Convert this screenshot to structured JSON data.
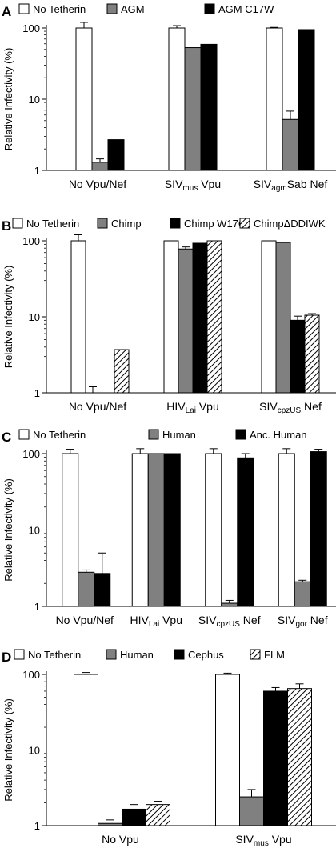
{
  "colors": {
    "no_tetherin": "#ffffff",
    "gray": "#808080",
    "black": "#000000",
    "hatch": "hatched"
  },
  "chart_data": [
    {
      "type": "bar",
      "panel_label": "A",
      "ylabel": "Relative Infectivity (%)",
      "yscale": "log",
      "ylim": [
        1,
        100
      ],
      "yticks": [
        "1",
        "10",
        "100"
      ],
      "legend_placement": "top",
      "categories": [
        {
          "main": "No Vpu/Nef",
          "sub": "",
          "tail": ""
        },
        {
          "main": "SIV",
          "sub": "mus",
          "tail": " Vpu"
        },
        {
          "main": "SIV",
          "sub": "agm",
          "tail": "Sab Nef"
        }
      ],
      "series": [
        {
          "name": "No Tetherin",
          "fill": "white",
          "values": [
            100,
            100,
            100
          ],
          "errors": [
            20,
            8,
            2
          ]
        },
        {
          "name": "AGM",
          "fill": "gray",
          "values": [
            1.3,
            53,
            5.2
          ],
          "errors": [
            0.15,
            0,
            1.6
          ]
        },
        {
          "name": "AGM C17W",
          "fill": "black",
          "values": [
            2.7,
            59,
            95
          ],
          "errors": [
            0,
            0,
            0
          ]
        }
      ]
    },
    {
      "type": "bar",
      "panel_label": "B",
      "ylabel": "Relative Infectivity (%)",
      "yscale": "log",
      "ylim": [
        1,
        100
      ],
      "yticks": [
        "1",
        "10",
        "100"
      ],
      "legend_placement": "top",
      "categories": [
        {
          "main": "No Vpu/Nef",
          "sub": "",
          "tail": ""
        },
        {
          "main": "HIV",
          "sub": "Lai",
          "tail": " Vpu"
        },
        {
          "main": "SIV",
          "sub": "cpzUS",
          "tail": " Nef"
        }
      ],
      "series": [
        {
          "name": "No Tetherin",
          "fill": "white",
          "values": [
            100,
            100,
            100
          ],
          "errors": [
            20,
            0,
            0
          ]
        },
        {
          "name": "Chimp",
          "fill": "gray",
          "values": [
            1.0,
            78,
            95
          ],
          "errors": [
            0.2,
            5,
            0
          ]
        },
        {
          "name": "Chimp W17C",
          "fill": "black",
          "values": [
            1.0,
            93,
            9
          ],
          "errors": [
            0,
            0,
            1.2
          ]
        },
        {
          "name": "ChimpΔDDIWK",
          "fill": "hatch",
          "values": [
            3.7,
            100,
            10.5
          ],
          "errors": [
            0,
            0,
            0.5
          ]
        }
      ]
    },
    {
      "type": "bar",
      "panel_label": "C",
      "ylabel": "Relative Infectivity (%)",
      "yscale": "log",
      "ylim": [
        1,
        100
      ],
      "yticks": [
        "1",
        "10",
        "100"
      ],
      "legend_placement": "top",
      "categories": [
        {
          "main": "No Vpu/Nef",
          "sub": "",
          "tail": ""
        },
        {
          "main": "HIV",
          "sub": "Lai",
          "tail": " Vpu"
        },
        {
          "main": "SIV",
          "sub": "cpzUS",
          "tail": " Nef"
        },
        {
          "main": "SIV",
          "sub": "gor",
          "tail": " Nef"
        }
      ],
      "series": [
        {
          "name": "No Tetherin",
          "fill": "white",
          "values": [
            100,
            100,
            100,
            100
          ],
          "errors": [
            14,
            16,
            16,
            16
          ]
        },
        {
          "name": "Human",
          "fill": "gray",
          "values": [
            2.8,
            100,
            1.1,
            2.1
          ],
          "errors": [
            0.2,
            0,
            0.1,
            0.1
          ]
        },
        {
          "name": "Anc. Human",
          "fill": "black",
          "values": [
            2.7,
            100,
            88,
            106
          ],
          "errors": [
            2.3,
            0,
            12,
            8
          ]
        }
      ]
    },
    {
      "type": "bar",
      "panel_label": "D",
      "ylabel": "Relative Infectivity (%)",
      "yscale": "log",
      "ylim": [
        1,
        100
      ],
      "yticks": [
        "1",
        "10",
        "100"
      ],
      "legend_placement": "top",
      "categories": [
        {
          "main": "No Vpu",
          "sub": "",
          "tail": ""
        },
        {
          "main": "SIV",
          "sub": "mus",
          "tail": " Vpu"
        }
      ],
      "series": [
        {
          "name": "No Tetherin",
          "fill": "white",
          "values": [
            100,
            100
          ],
          "errors": [
            6,
            4
          ]
        },
        {
          "name": "Human",
          "fill": "gray",
          "values": [
            1.07,
            2.4
          ],
          "errors": [
            0.12,
            0.6
          ]
        },
        {
          "name": "Cephus",
          "fill": "black",
          "values": [
            1.65,
            60
          ],
          "errors": [
            0.25,
            7
          ]
        },
        {
          "name": "FLM",
          "fill": "hatch",
          "values": [
            1.9,
            65
          ],
          "errors": [
            0.2,
            10
          ]
        }
      ]
    }
  ]
}
